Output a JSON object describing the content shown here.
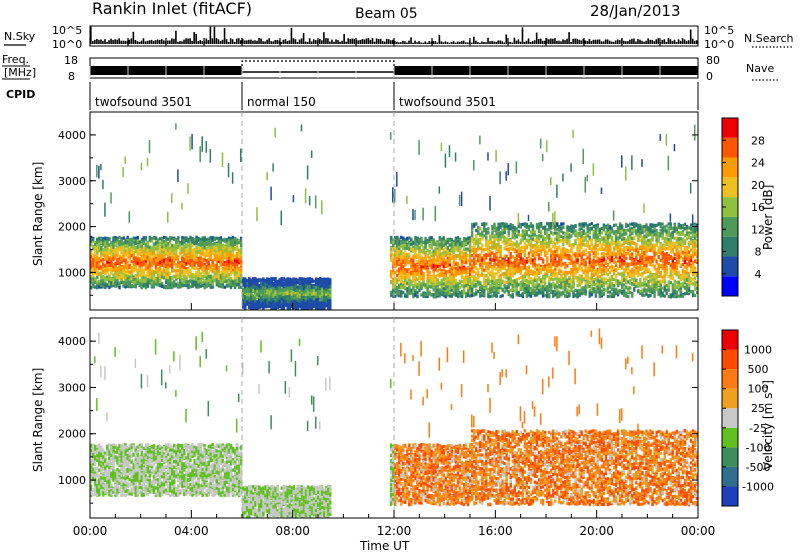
{
  "header": {
    "station": "Rankin Inlet (fitACF)",
    "beam": "Beam 05",
    "date": "28/Jan/2013"
  },
  "top_panels": {
    "nsky_label": "N.Sky",
    "nsky_tick_top": "10^5",
    "nsky_tick_bottom": "10^0",
    "nsearch_label": "N.Search",
    "nsearch_tick_top": "10^5",
    "nsearch_tick_bottom": "10^0",
    "freq_label_line1": "Freq.",
    "freq_label_line2": "[MHz]",
    "freq_tick_top": "18",
    "freq_tick_bottom": "8",
    "nave_label": "Nave",
    "nave_tick_top": "80",
    "nave_tick_bottom": "0",
    "cpid_label": "CPID",
    "cpid_segments": [
      {
        "label": "twofsound 3501",
        "start_hour": 0,
        "end_hour": 6
      },
      {
        "label": "normal 150",
        "start_hour": 6,
        "end_hour": 12
      },
      {
        "label": "twofsound 3501",
        "start_hour": 12,
        "end_hour": 24
      }
    ]
  },
  "chart_data": [
    {
      "type": "heatmap",
      "name": "power",
      "ylabel": "Slant Range [km]",
      "x_range_hours": [
        0,
        24
      ],
      "ylim": [
        180,
        4500
      ],
      "yticks": [
        1000,
        2000,
        3000,
        4000
      ],
      "colorbar_label": "Power [dB]",
      "colorbar_ticks": [
        "28",
        "24",
        "20",
        "16",
        "12",
        "8",
        "4"
      ],
      "colorbar_colors": [
        "#0000ff",
        "#1f4ba8",
        "#2e7d6a",
        "#4f9a5a",
        "#8fc040",
        "#f0c020",
        "#ff9a00",
        "#ff5500",
        "#ee0000"
      ],
      "mode_change_lines_hours": [
        6,
        12
      ]
    },
    {
      "type": "heatmap",
      "name": "velocity",
      "ylabel": "Slant Range [km]",
      "x_range_hours": [
        0,
        24
      ],
      "ylim": [
        180,
        4500
      ],
      "yticks": [
        1000,
        2000,
        3000,
        4000
      ],
      "colorbar_label": "Velocity [m s-1]",
      "colorbar_ticks": [
        "1000",
        "500",
        "100",
        "25",
        "-25",
        "-100",
        "-500",
        "-1000"
      ],
      "colorbar_colors": [
        "#1f3fbf",
        "#2e6f8e",
        "#3c8f5a",
        "#5fc020",
        "#c8c8c8",
        "#f0a020",
        "#ff7a10",
        "#ff4a00",
        "#ee0000"
      ],
      "mode_change_lines_hours": [
        6,
        12
      ]
    }
  ],
  "x_axis": {
    "ticks": [
      "00:00",
      "04:00",
      "08:00",
      "12:00",
      "16:00",
      "20:00",
      "00:00"
    ],
    "tick_hours": [
      0,
      4,
      8,
      12,
      16,
      20,
      24
    ],
    "label": "Time UT"
  }
}
